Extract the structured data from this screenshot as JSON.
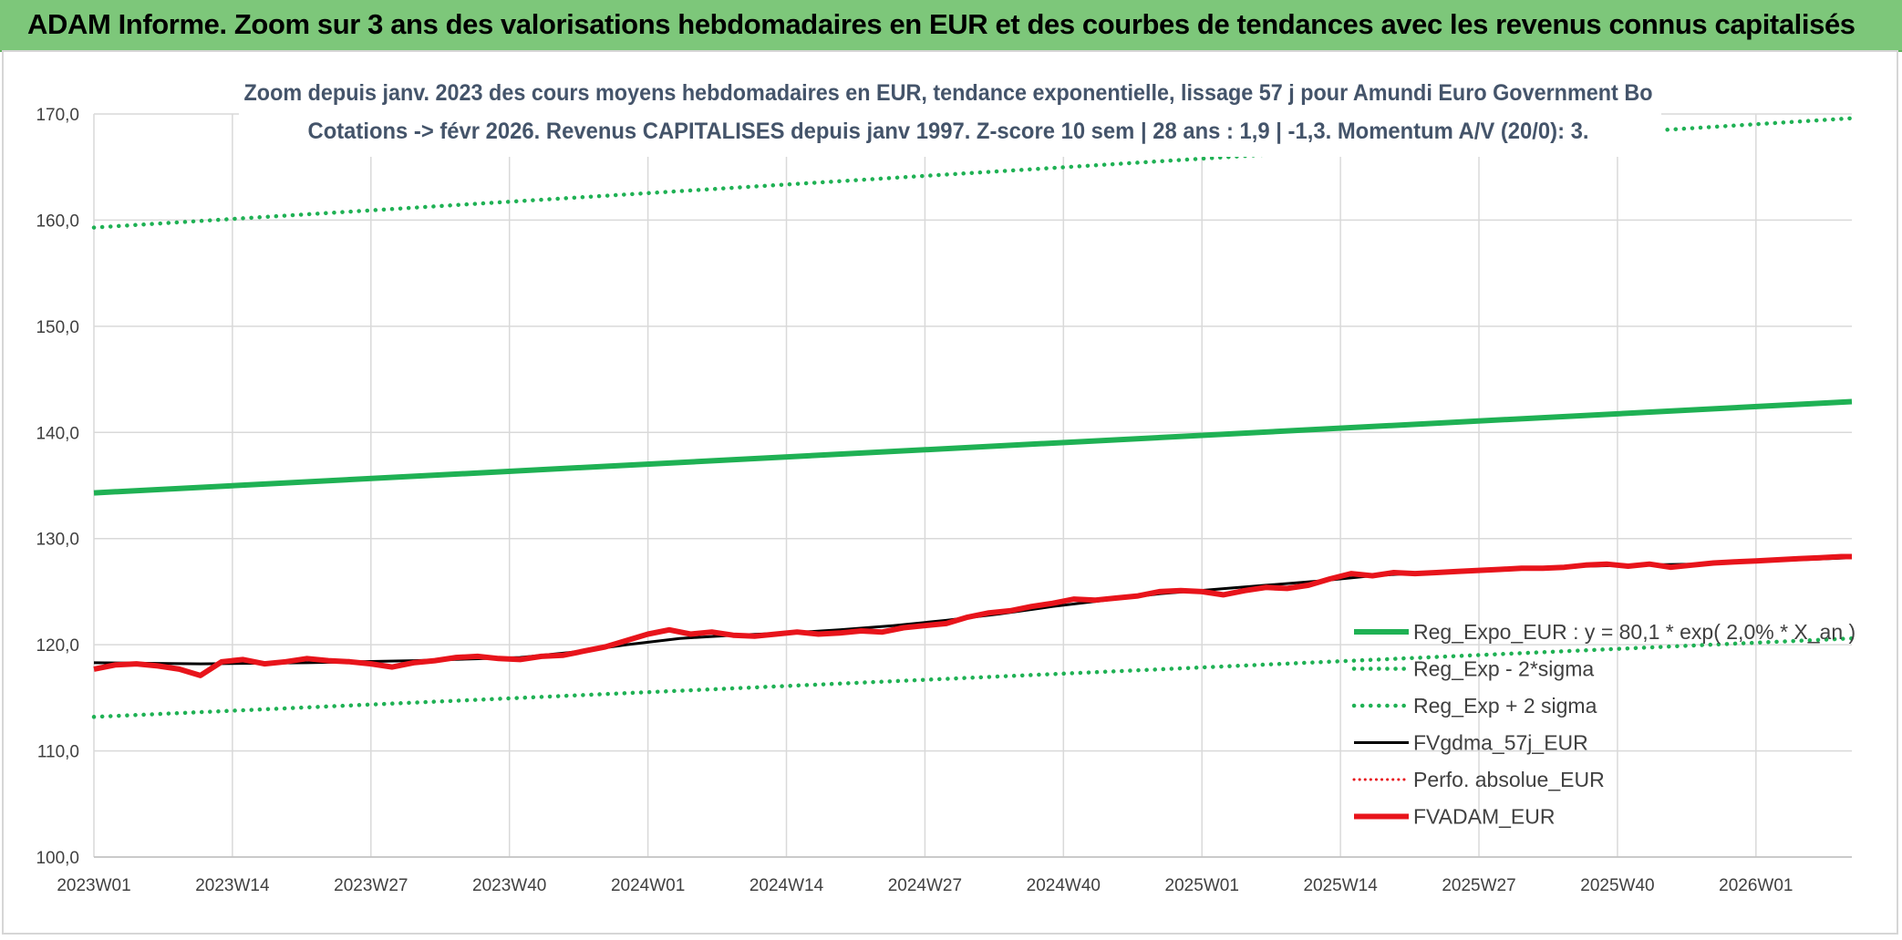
{
  "page_title": "ADAM Informe. Zoom sur 3 ans des valorisations hebdomadaires en EUR et des courbes de tendances avec les revenus connus capitalisés",
  "colors": {
    "banner": "#7dc77a",
    "green": "#1fb154",
    "black": "#000000",
    "red": "#e8141b",
    "grid": "#d9d9d9",
    "axis_text": "#404040"
  },
  "chart_data": {
    "type": "line",
    "title_lines": [
      "Zoom depuis janv. 2023 des cours moyens hebdomadaires en EUR, tendance exponentielle, lissage 57 j pour Amundi Euro Government Bo",
      "Cotations -> févr 2026. Revenus CAPITALISES depuis janv 1997. Z-score 10 sem | 28 ans : 1,9 | -1,3. Momentum A/V (20/0): 3."
    ],
    "ylim": [
      100,
      170
    ],
    "y_ticks": [
      100,
      110,
      120,
      130,
      140,
      150,
      160,
      170
    ],
    "y_tick_labels": [
      "100,0",
      "110,0",
      "120,0",
      "130,0",
      "140,0",
      "150,0",
      "160,0",
      "170,0"
    ],
    "x_tick_positions": [
      0,
      13,
      26,
      39,
      52,
      65,
      78,
      91,
      104,
      117,
      130,
      143,
      156
    ],
    "x_tick_labels": [
      "2023W01",
      "2023W14",
      "2023W27",
      "2023W40",
      "2024W01",
      "2024W14",
      "2024W27",
      "2024W40",
      "2025W01",
      "2025W14",
      "2025W27",
      "2025W40",
      "2026W01"
    ],
    "x_max": 165,
    "series": [
      {
        "name": "Reg_Expo_EUR : y = 80,1 * exp( 2,0% * X_an )",
        "style": "thick",
        "color": "#1fb154",
        "x": [
          0,
          165
        ],
        "values": [
          134.3,
          142.9
        ]
      },
      {
        "name": "Reg_Exp - 2*sigma",
        "style": "dotted",
        "color": "#1fb154",
        "x": [
          0,
          165
        ],
        "values": [
          113.2,
          120.6
        ]
      },
      {
        "name": "Reg_Exp + 2 sigma",
        "style": "dotted",
        "color": "#1fb154",
        "x": [
          0,
          165
        ],
        "values": [
          159.3,
          169.6
        ]
      },
      {
        "name": "FVgdma_57j_EUR",
        "style": "solid",
        "color": "#000000",
        "x": [
          0,
          10,
          20,
          30,
          40,
          45,
          50,
          55,
          60,
          65,
          70,
          75,
          80,
          85,
          90,
          95,
          100,
          105,
          110,
          115,
          120,
          125,
          130,
          135,
          140,
          145,
          150,
          155,
          160,
          165
        ],
        "values": [
          118.3,
          118.2,
          118.3,
          118.5,
          118.8,
          119.3,
          120.0,
          120.6,
          120.9,
          121.1,
          121.4,
          121.8,
          122.3,
          122.9,
          123.6,
          124.2,
          124.8,
          125.2,
          125.6,
          126.0,
          126.5,
          126.8,
          127.0,
          127.2,
          127.4,
          127.5,
          127.6,
          127.8,
          128.0,
          128.2
        ]
      },
      {
        "name": "Perfo. absolue_EUR",
        "style": "red-dotted",
        "color": "#e8141b",
        "x": [],
        "values": []
      },
      {
        "name": "FVADAM_EUR",
        "style": "thick",
        "color": "#e8141b",
        "x": [
          0,
          2,
          4,
          6,
          8,
          10,
          12,
          14,
          16,
          18,
          20,
          22,
          24,
          26,
          28,
          30,
          32,
          34,
          36,
          38,
          40,
          42,
          44,
          46,
          48,
          50,
          52,
          54,
          56,
          58,
          60,
          62,
          64,
          66,
          68,
          70,
          72,
          74,
          76,
          78,
          80,
          82,
          84,
          86,
          88,
          90,
          92,
          94,
          96,
          98,
          100,
          102,
          104,
          106,
          108,
          110,
          112,
          114,
          116,
          118,
          120,
          122,
          124,
          126,
          128,
          130,
          132,
          134,
          136,
          138,
          140,
          142,
          144,
          146,
          148,
          150,
          152,
          154,
          156,
          158,
          160,
          162,
          164,
          165
        ],
        "values": [
          117.7,
          118.1,
          118.2,
          118.0,
          117.7,
          117.1,
          118.4,
          118.6,
          118.2,
          118.4,
          118.7,
          118.5,
          118.4,
          118.2,
          117.9,
          118.3,
          118.5,
          118.8,
          118.9,
          118.7,
          118.6,
          118.9,
          119.0,
          119.4,
          119.8,
          120.4,
          121.0,
          121.4,
          121.0,
          121.2,
          120.9,
          120.8,
          121.0,
          121.2,
          121.0,
          121.1,
          121.3,
          121.2,
          121.6,
          121.8,
          122.0,
          122.6,
          123.0,
          123.2,
          123.6,
          123.9,
          124.3,
          124.2,
          124.4,
          124.6,
          125.0,
          125.1,
          125.0,
          124.7,
          125.1,
          125.4,
          125.3,
          125.6,
          126.2,
          126.7,
          126.5,
          126.8,
          126.7,
          126.8,
          126.9,
          127.0,
          127.1,
          127.2,
          127.2,
          127.3,
          127.5,
          127.6,
          127.4,
          127.6,
          127.3,
          127.5,
          127.7,
          127.8,
          127.9,
          128.0,
          128.1,
          128.2,
          128.3,
          128.3
        ]
      }
    ],
    "legend_position": "bottom-right"
  }
}
